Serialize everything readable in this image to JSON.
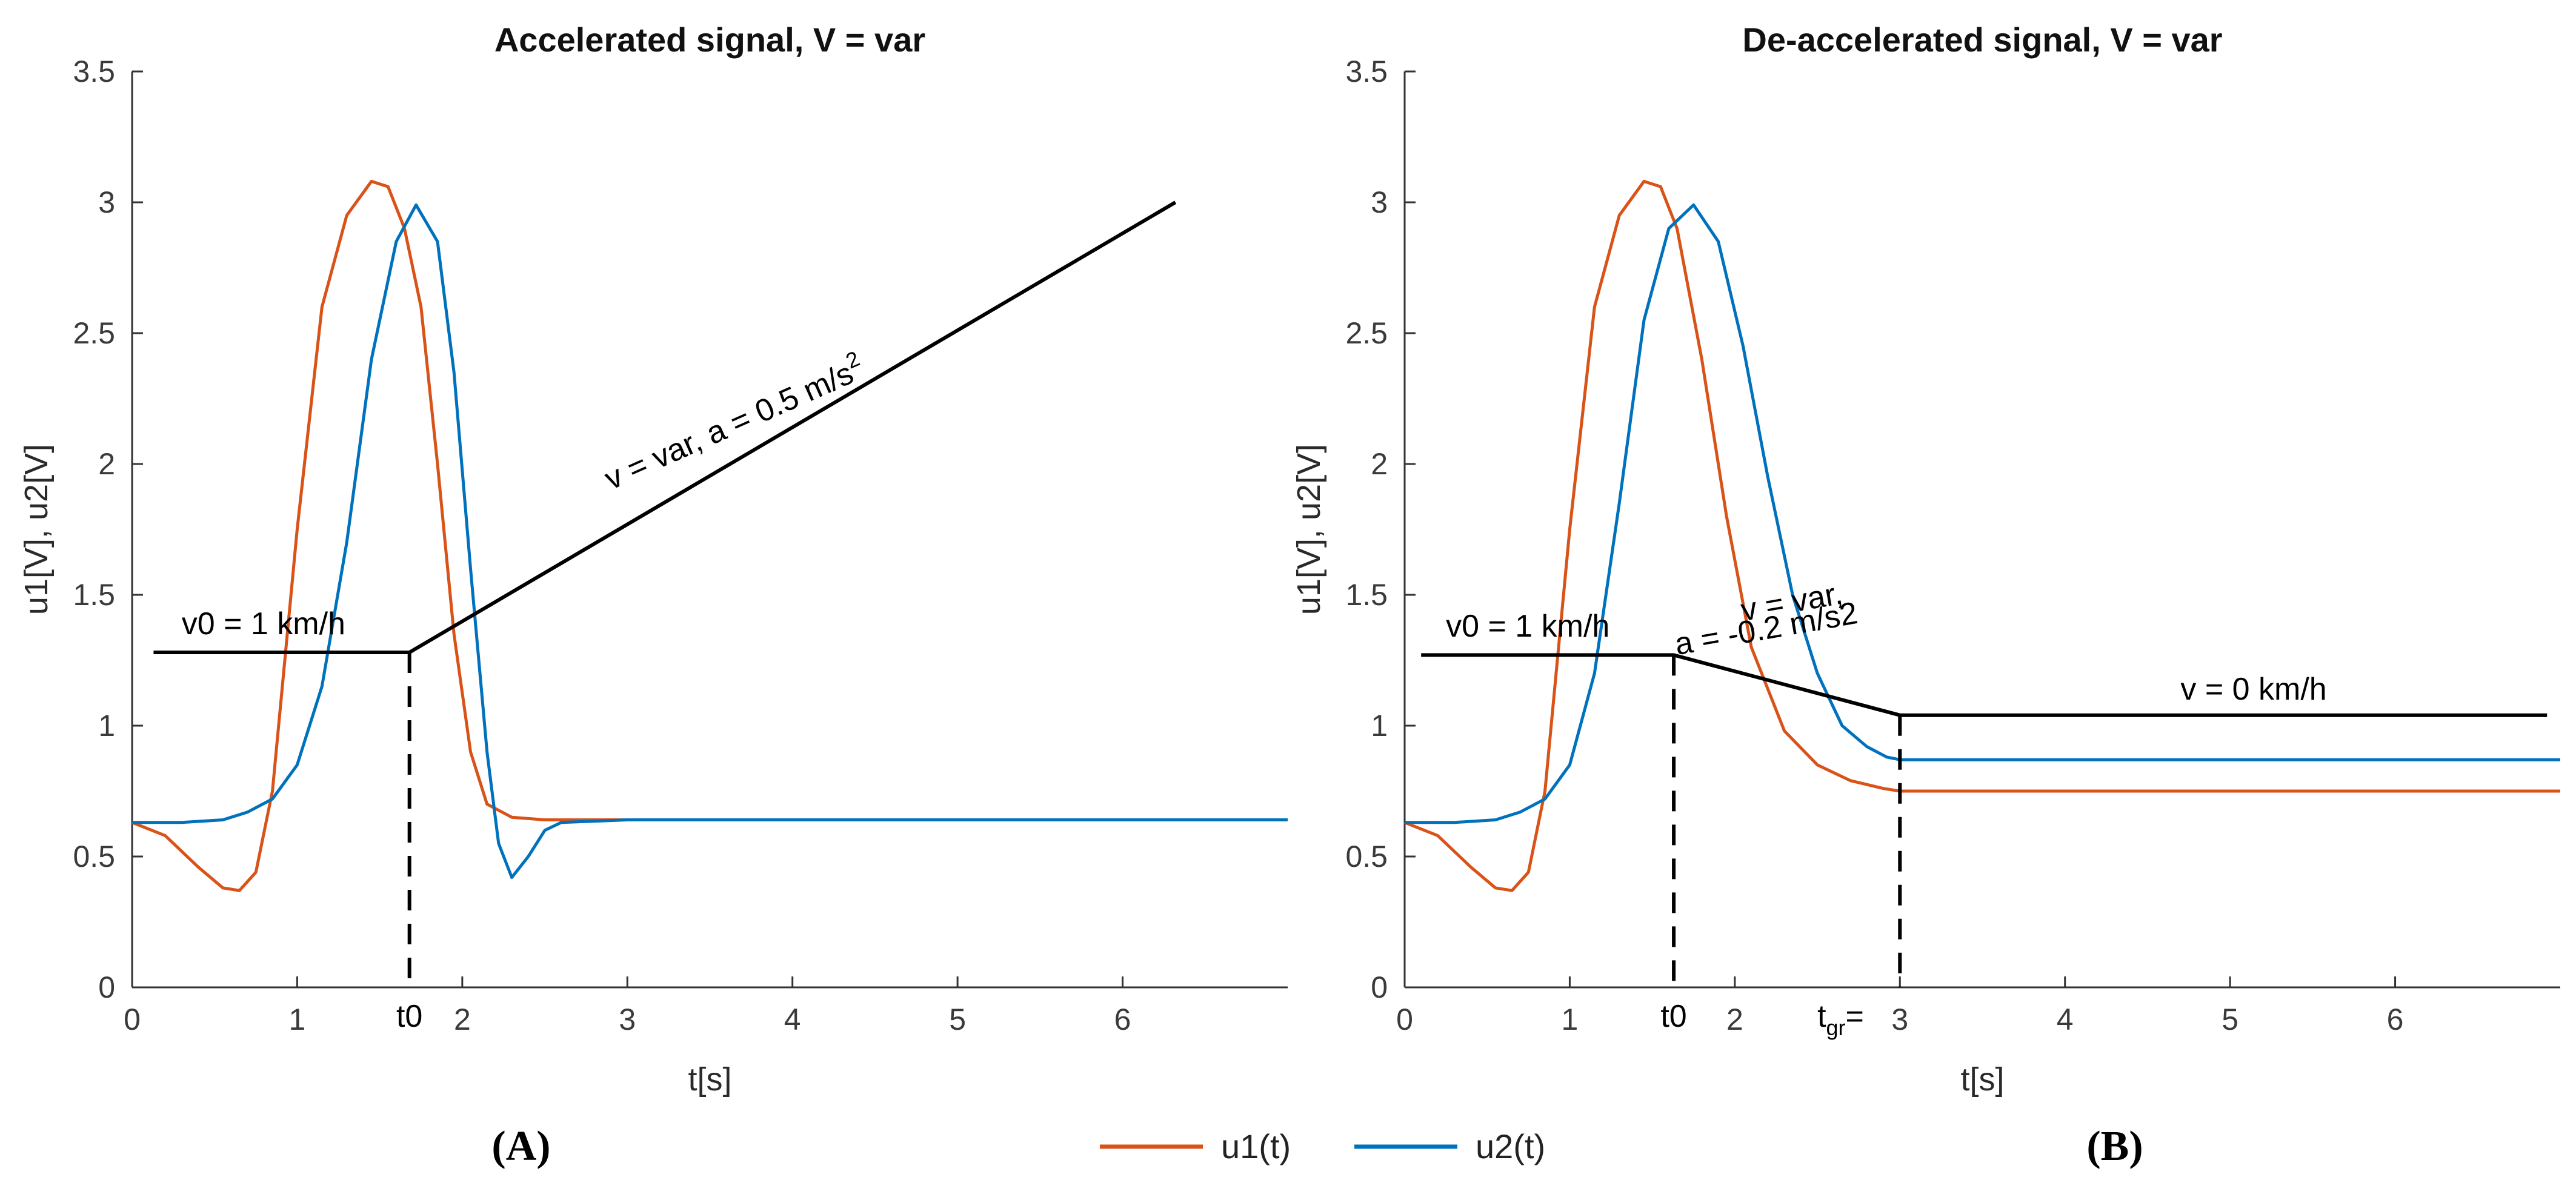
{
  "figure": {
    "panel_labels": [
      "(A)",
      "(B)"
    ],
    "legend": [
      {
        "name": "u1(t)",
        "color": "#D95319"
      },
      {
        "name": "u2(t)",
        "color": "#0072BD"
      }
    ]
  },
  "chart_data": [
    {
      "type": "line",
      "title": "Accelerated signal, V = var",
      "xlabel": "t[s]",
      "ylabel": "u1[V], u2[V]",
      "xlim": [
        0,
        7
      ],
      "ylim": [
        0,
        3.5
      ],
      "xticks": [
        0,
        1,
        2,
        3,
        4,
        5,
        6
      ],
      "xtick_labels": [
        "0",
        "1",
        "2",
        "3",
        "4",
        "5",
        "6"
      ],
      "yticks": [
        0,
        0.5,
        1,
        1.5,
        2,
        2.5,
        3,
        3.5
      ],
      "ytick_labels": [
        "0",
        "0.5",
        "1",
        "1.5",
        "2",
        "2.5",
        "3",
        "3.5"
      ],
      "series": [
        {
          "name": "u1(t)",
          "color": "#D95319",
          "x": [
            0,
            0.2,
            0.4,
            0.55,
            0.65,
            0.75,
            0.85,
            1.0,
            1.15,
            1.3,
            1.45,
            1.55,
            1.65,
            1.75,
            1.85,
            1.95,
            2.05,
            2.15,
            2.3,
            2.5,
            3.0,
            4.0,
            5.0,
            6.0,
            7.0
          ],
          "y": [
            0.63,
            0.58,
            0.46,
            0.38,
            0.37,
            0.44,
            0.75,
            1.75,
            2.6,
            2.95,
            3.08,
            3.06,
            2.9,
            2.6,
            2.0,
            1.35,
            0.9,
            0.7,
            0.65,
            0.64,
            0.64,
            0.64,
            0.64,
            0.64,
            0.64
          ]
        },
        {
          "name": "u2(t)",
          "color": "#0072BD",
          "x": [
            0,
            0.3,
            0.55,
            0.7,
            0.85,
            1.0,
            1.15,
            1.3,
            1.45,
            1.6,
            1.72,
            1.85,
            1.95,
            2.05,
            2.15,
            2.22,
            2.3,
            2.4,
            2.5,
            2.6,
            3.0,
            4.0,
            5.0,
            6.0,
            7.0
          ],
          "y": [
            0.63,
            0.63,
            0.64,
            0.67,
            0.72,
            0.85,
            1.15,
            1.7,
            2.4,
            2.85,
            2.99,
            2.85,
            2.35,
            1.6,
            0.9,
            0.55,
            0.42,
            0.5,
            0.6,
            0.63,
            0.64,
            0.64,
            0.64,
            0.64,
            0.64
          ]
        }
      ],
      "overlay_lines": [
        {
          "style": "solid",
          "x": [
            0.13,
            1.68,
            6.32
          ],
          "y": [
            1.28,
            1.28,
            3.0
          ]
        },
        {
          "style": "dashed",
          "x": [
            1.68,
            1.68
          ],
          "y": [
            1.28,
            0
          ]
        }
      ],
      "annotations": [
        {
          "text": "v0 = 1 km/h",
          "x": 0.3,
          "y": 1.35,
          "rotate": 0
        },
        {
          "text": "v = var, a = 0.5 m/s",
          "sup": "2",
          "x": 2.9,
          "y": 1.9,
          "rotate": -24
        },
        {
          "text": "t0",
          "x": 1.68,
          "y": -0.15,
          "rotate": 0,
          "anchor": "middle"
        }
      ]
    },
    {
      "type": "line",
      "title": "De-accelerated signal, V = var",
      "xlabel": "t[s]",
      "ylabel": "u1[V], u2[V]",
      "xlim": [
        0,
        7
      ],
      "ylim": [
        0,
        3.5
      ],
      "xticks": [
        0,
        1,
        2,
        3,
        4,
        5,
        6
      ],
      "xtick_labels": [
        "0",
        "1",
        "2",
        "3",
        "4",
        "5",
        "6"
      ],
      "yticks": [
        0,
        0.5,
        1,
        1.5,
        2,
        2.5,
        3,
        3.5
      ],
      "ytick_labels": [
        "0",
        "0.5",
        "1",
        "1.5",
        "2",
        "2.5",
        "3",
        "3.5"
      ],
      "series": [
        {
          "name": "u1(t)",
          "color": "#D95319",
          "x": [
            0,
            0.2,
            0.4,
            0.55,
            0.65,
            0.75,
            0.85,
            1.0,
            1.15,
            1.3,
            1.45,
            1.55,
            1.65,
            1.8,
            1.95,
            2.1,
            2.3,
            2.5,
            2.7,
            2.9,
            3.0,
            4.0,
            5.0,
            6.0,
            7.0
          ],
          "y": [
            0.63,
            0.58,
            0.46,
            0.38,
            0.37,
            0.44,
            0.75,
            1.75,
            2.6,
            2.95,
            3.08,
            3.06,
            2.9,
            2.4,
            1.8,
            1.3,
            0.98,
            0.85,
            0.79,
            0.76,
            0.75,
            0.75,
            0.75,
            0.75,
            0.75
          ]
        },
        {
          "name": "u2(t)",
          "color": "#0072BD",
          "x": [
            0,
            0.3,
            0.55,
            0.7,
            0.85,
            1.0,
            1.15,
            1.3,
            1.45,
            1.6,
            1.75,
            1.9,
            2.05,
            2.2,
            2.35,
            2.5,
            2.65,
            2.8,
            2.92,
            3.0,
            4.0,
            5.0,
            6.0,
            7.0
          ],
          "y": [
            0.63,
            0.63,
            0.64,
            0.67,
            0.72,
            0.85,
            1.2,
            1.85,
            2.55,
            2.9,
            2.99,
            2.85,
            2.45,
            1.95,
            1.5,
            1.2,
            1.0,
            0.92,
            0.88,
            0.87,
            0.87,
            0.87,
            0.87,
            0.87
          ]
        }
      ],
      "overlay_lines": [
        {
          "style": "solid",
          "x": [
            0.1,
            1.63,
            3.0,
            6.92
          ],
          "y": [
            1.27,
            1.27,
            1.04,
            1.04
          ]
        },
        {
          "style": "dashed",
          "x": [
            1.63,
            1.63
          ],
          "y": [
            1.27,
            0
          ]
        },
        {
          "style": "dashed",
          "x": [
            3.0,
            3.0
          ],
          "y": [
            1.04,
            0
          ]
        }
      ],
      "annotations": [
        {
          "text": "v0 = 1 km/h",
          "x": 0.25,
          "y": 1.34,
          "rotate": 0
        },
        {
          "text": "v = var,",
          "x": 2.05,
          "y": 1.4,
          "rotate": -10
        },
        {
          "text": "a = -0.2 m/s2",
          "x": 1.65,
          "y": 1.27,
          "rotate": -10
        },
        {
          "text": "v = 0 km/h",
          "x": 4.7,
          "y": 1.1,
          "rotate": 0
        },
        {
          "text": "t0",
          "x": 1.63,
          "y": -0.15,
          "rotate": 0,
          "anchor": "middle"
        },
        {
          "text": "t",
          "sub": "gr",
          "suffix": "=",
          "x": 2.5,
          "y": -0.15,
          "rotate": 0
        }
      ]
    }
  ]
}
